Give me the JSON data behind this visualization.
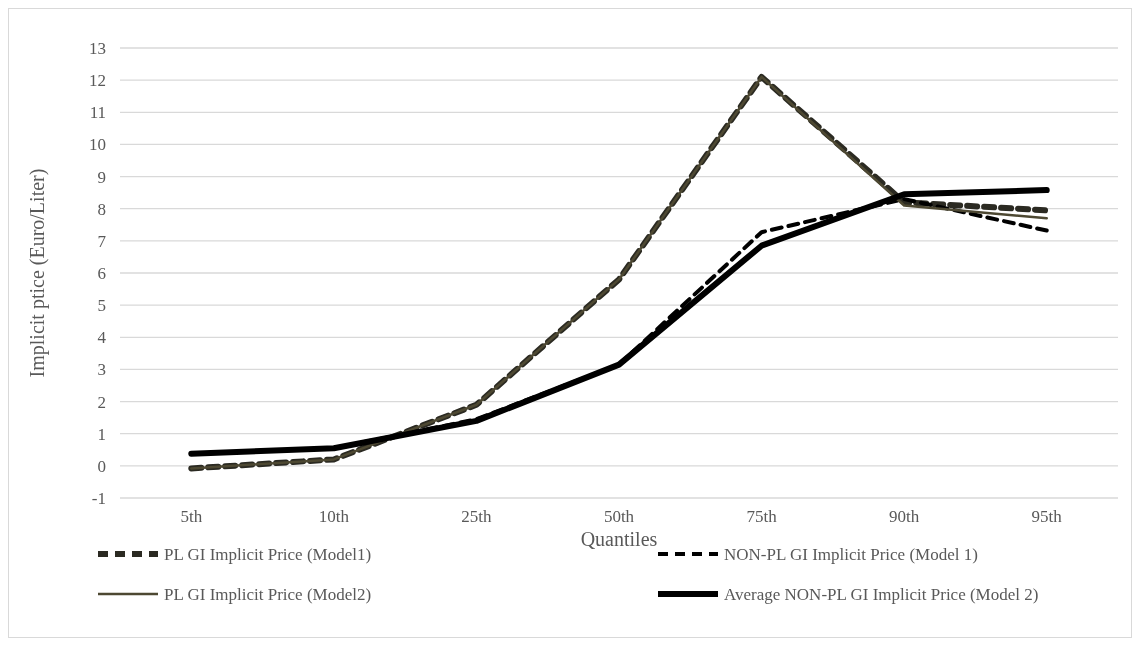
{
  "chart_data": {
    "type": "line",
    "xlabel": "Quantiles",
    "ylabel": "Implicit ptice (Euro/Liter)",
    "categories": [
      "5th",
      "10th",
      "25th",
      "50th",
      "75th",
      "90th",
      "95th"
    ],
    "ylim": [
      -1,
      13
    ],
    "yticks": [
      -1,
      0,
      1,
      2,
      3,
      4,
      5,
      6,
      7,
      8,
      9,
      10,
      11,
      12,
      13
    ],
    "grid": "y",
    "legend": "bottom",
    "marker": "none",
    "series": [
      {
        "name": "PL GI Implicit Price (Model1)",
        "color": "#2b2a22",
        "line_style": "dashed",
        "values": [
          -0.08,
          0.2,
          1.9,
          5.8,
          12.1,
          8.2,
          7.95
        ]
      },
      {
        "name": "NON-PL GI Implicit Price (Model 1)",
        "color": "#000000",
        "line_style": "dashed",
        "values": [
          0.38,
          0.55,
          1.45,
          3.15,
          7.27,
          8.3,
          7.32
        ]
      },
      {
        "name": "PL GI Implicit Price (Model2)",
        "color": "#4d4832",
        "line_style": "solid",
        "values": [
          -0.08,
          0.2,
          1.9,
          5.8,
          12.1,
          8.1,
          7.7
        ]
      },
      {
        "name": "Average NON-PL GI Implicit Price (Model 2)",
        "color": "#000000",
        "line_style": "solid",
        "values": [
          0.38,
          0.55,
          1.4,
          3.15,
          6.85,
          8.45,
          8.58
        ]
      }
    ]
  }
}
